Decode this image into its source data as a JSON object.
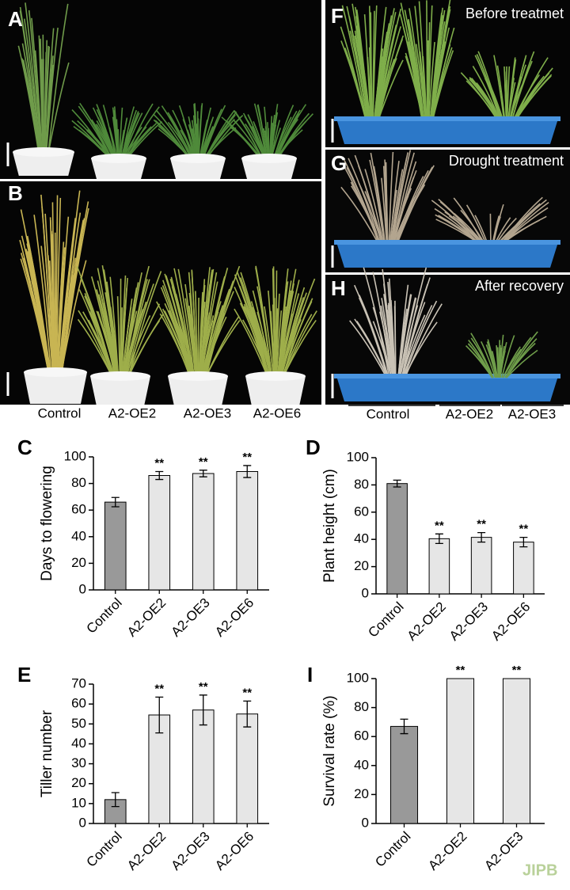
{
  "photos": {
    "panels": [
      {
        "letter": "A"
      },
      {
        "letter": "B"
      },
      {
        "letter": "F",
        "caption": "Before treatmet"
      },
      {
        "letter": "G",
        "caption": "Drought treatment"
      },
      {
        "letter": "H",
        "caption": "After recovery"
      }
    ],
    "b_labels": [
      "Control",
      "A2-OE2",
      "A2-OE3",
      "A2-OE6"
    ],
    "h_labels": [
      "Control",
      "A2-OE2",
      "A2-OE3"
    ]
  },
  "chart_data": [
    {
      "type": "bar",
      "panel": "C",
      "ylabel": "Days to flowering",
      "categories": [
        "Control",
        "A2-OE2",
        "A2-OE3",
        "A2-OE6"
      ],
      "values": [
        66,
        86,
        87.5,
        89
      ],
      "errors": [
        3.5,
        3,
        2.5,
        4.5
      ],
      "annotations": [
        null,
        "**",
        "**",
        "**"
      ],
      "colors": [
        "#999999",
        "#e6e6e6",
        "#e6e6e6",
        "#e6e6e6"
      ],
      "ylim": [
        0,
        100
      ],
      "yticks": [
        0,
        20,
        40,
        60,
        80,
        100
      ]
    },
    {
      "type": "bar",
      "panel": "D",
      "ylabel": "Plant height (cm)",
      "categories": [
        "Control",
        "A2-OE2",
        "A2-OE3",
        "A2-OE6"
      ],
      "values": [
        81,
        40.5,
        41.5,
        38
      ],
      "errors": [
        2.5,
        3.5,
        3.5,
        3.5
      ],
      "annotations": [
        null,
        "**",
        "**",
        "**"
      ],
      "colors": [
        "#999999",
        "#e6e6e6",
        "#e6e6e6",
        "#e6e6e6"
      ],
      "ylim": [
        0,
        100
      ],
      "yticks": [
        0,
        20,
        40,
        60,
        80,
        100
      ]
    },
    {
      "type": "bar",
      "panel": "E",
      "ylabel": "Tiller number",
      "categories": [
        "Control",
        "A2-OE2",
        "A2-OE3",
        "A2-OE6"
      ],
      "values": [
        12,
        54.5,
        57,
        55
      ],
      "errors": [
        3.5,
        9,
        7.5,
        6.5
      ],
      "annotations": [
        null,
        "**",
        "**",
        "**"
      ],
      "colors": [
        "#999999",
        "#e6e6e6",
        "#e6e6e6",
        "#e6e6e6"
      ],
      "ylim": [
        0,
        70
      ],
      "yticks": [
        0,
        10,
        20,
        30,
        40,
        50,
        60,
        70
      ]
    },
    {
      "type": "bar",
      "panel": "I",
      "ylabel": "Survival rate (%)",
      "categories": [
        "Control",
        "A2-OE2",
        "A2-OE3"
      ],
      "values": [
        67,
        100,
        100
      ],
      "errors": [
        5,
        null,
        null
      ],
      "annotations": [
        null,
        "**",
        "**"
      ],
      "colors": [
        "#999999",
        "#e6e6e6",
        "#e6e6e6"
      ],
      "ylim": [
        0,
        100
      ],
      "yticks": [
        0,
        20,
        40,
        60,
        80,
        100
      ]
    }
  ],
  "watermark": "JIPB"
}
